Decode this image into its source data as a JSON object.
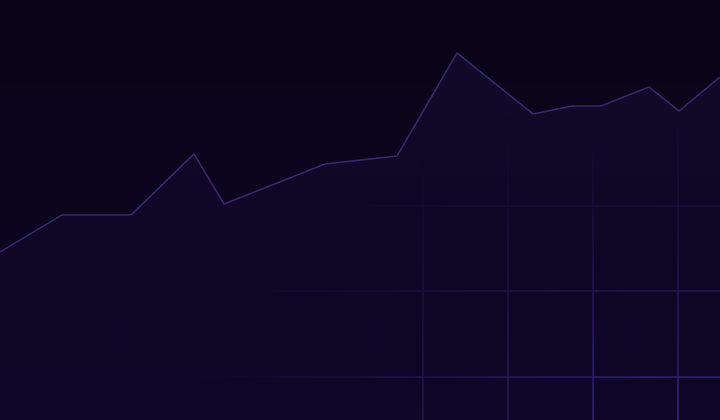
{
  "background": {
    "base_color": "#0a0416",
    "line_color": "#3a2670",
    "area_color": "#140a2c",
    "grid_color": "#4a2a9a"
  },
  "chart_data": {
    "type": "line",
    "title": "",
    "xlabel": "",
    "ylabel": "",
    "grid": true,
    "series": [
      {
        "values": [
          0.06,
          0.2,
          0.2,
          0.43,
          0.24,
          0.39,
          0.42,
          0.81,
          0.58,
          0.61,
          0.61,
          0.68,
          0.59,
          0.72
        ]
      }
    ]
  }
}
